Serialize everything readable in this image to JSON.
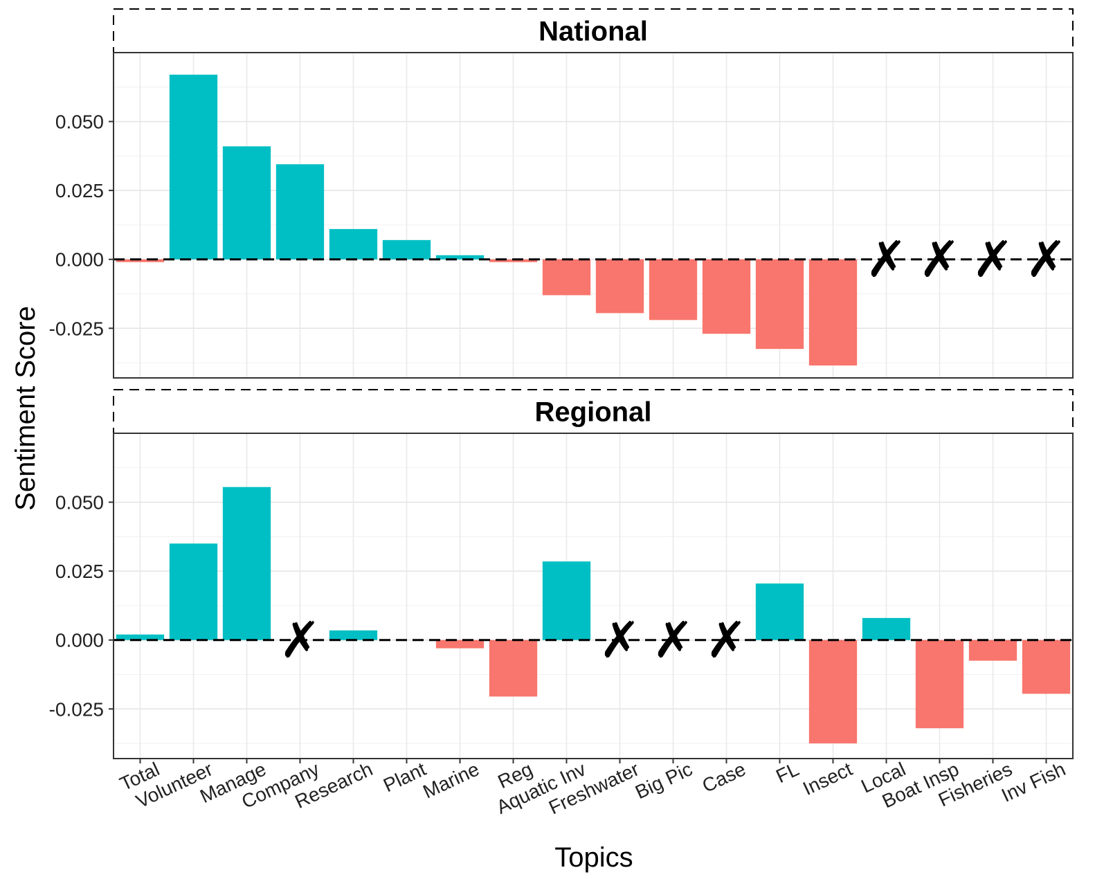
{
  "chart_data": {
    "type": "bar",
    "xlabel": "Topics",
    "ylabel": "Sentiment Score",
    "categories": [
      "Total",
      "Volunteer",
      "Manage",
      "Company",
      "Research",
      "Plant",
      "Marine",
      "Reg",
      "Aquatic Inv",
      "Freshwater",
      "Big Pic",
      "Case",
      "FL",
      "Insect",
      "Local",
      "Boat Insp",
      "Fisheries",
      "Inv Fish"
    ],
    "ylim": [
      -0.043,
      0.075
    ],
    "y_ticks": [
      -0.025,
      0.0,
      0.025,
      0.05
    ],
    "y_tick_labels": [
      "-0.025",
      "0.000",
      "0.025",
      "0.050"
    ],
    "grid": true,
    "legend": "none",
    "colors": {
      "positive": "#00BFC4",
      "negative": "#F8766D"
    },
    "missing_marker": "✗",
    "panels": [
      {
        "title": "National",
        "values": [
          -0.001,
          0.067,
          0.041,
          0.0345,
          0.011,
          0.007,
          0.0015,
          -0.001,
          -0.013,
          -0.0195,
          -0.022,
          -0.027,
          -0.0325,
          -0.0385,
          null,
          null,
          null,
          null
        ]
      },
      {
        "title": "Regional",
        "values": [
          0.002,
          0.035,
          0.0555,
          null,
          0.0035,
          0.0,
          -0.003,
          -0.0205,
          0.0285,
          null,
          null,
          null,
          0.0205,
          -0.0375,
          0.008,
          -0.032,
          -0.0075,
          -0.0195
        ]
      }
    ]
  }
}
